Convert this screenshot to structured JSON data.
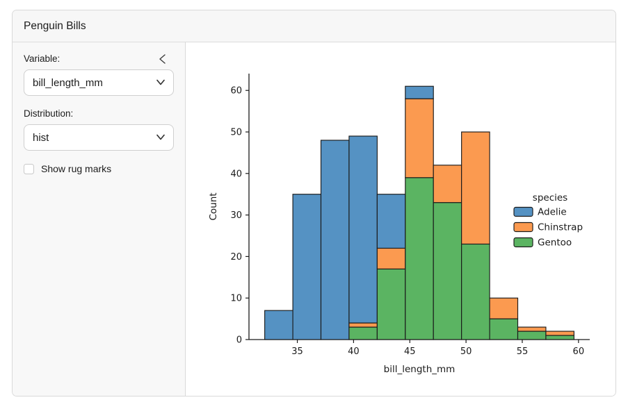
{
  "app": {
    "title": "Penguin Bills"
  },
  "sidebar": {
    "collapse_icon": "chevron-left",
    "variable_label": "Variable:",
    "variable_value": "bill_length_mm",
    "distribution_label": "Distribution:",
    "distribution_value": "hist",
    "rug_label": "Show rug marks",
    "rug_checked": false
  },
  "chart_data": {
    "type": "bar",
    "subtype": "stacked-histogram",
    "title": "",
    "xlabel": "bill_length_mm",
    "ylabel": "Count",
    "bin_edges": [
      32.1,
      34.6,
      37.1,
      39.6,
      42.1,
      44.6,
      47.1,
      49.6,
      52.1,
      54.6,
      57.1,
      59.6
    ],
    "series": [
      {
        "name": "Adelie",
        "color": "#5592c3",
        "values": [
          7,
          35,
          48,
          45,
          13,
          3,
          0,
          0,
          0,
          0,
          0
        ]
      },
      {
        "name": "Chinstrap",
        "color": "#fb9a50",
        "values": [
          0,
          0,
          0,
          1,
          5,
          19,
          9,
          27,
          5,
          1,
          1
        ]
      },
      {
        "name": "Gentoo",
        "color": "#5bb462",
        "values": [
          0,
          0,
          0,
          3,
          17,
          39,
          33,
          23,
          5,
          2,
          1
        ]
      }
    ],
    "stack_order": [
      "Gentoo",
      "Chinstrap",
      "Adelie"
    ],
    "bar_totals": [
      7,
      35,
      48,
      49,
      35,
      61,
      42,
      50,
      10,
      3,
      2
    ],
    "x_ticks": [
      35,
      40,
      45,
      50,
      55,
      60
    ],
    "y_ticks": [
      0,
      10,
      20,
      30,
      40,
      50,
      60
    ],
    "xlim": [
      30.7,
      61.0
    ],
    "ylim": [
      0,
      64.05
    ],
    "grid": false,
    "edge_color": "#1a1a1a",
    "legend": {
      "title": "species",
      "position": "center-right",
      "entries": [
        "Adelie",
        "Chinstrap",
        "Gentoo"
      ]
    }
  }
}
